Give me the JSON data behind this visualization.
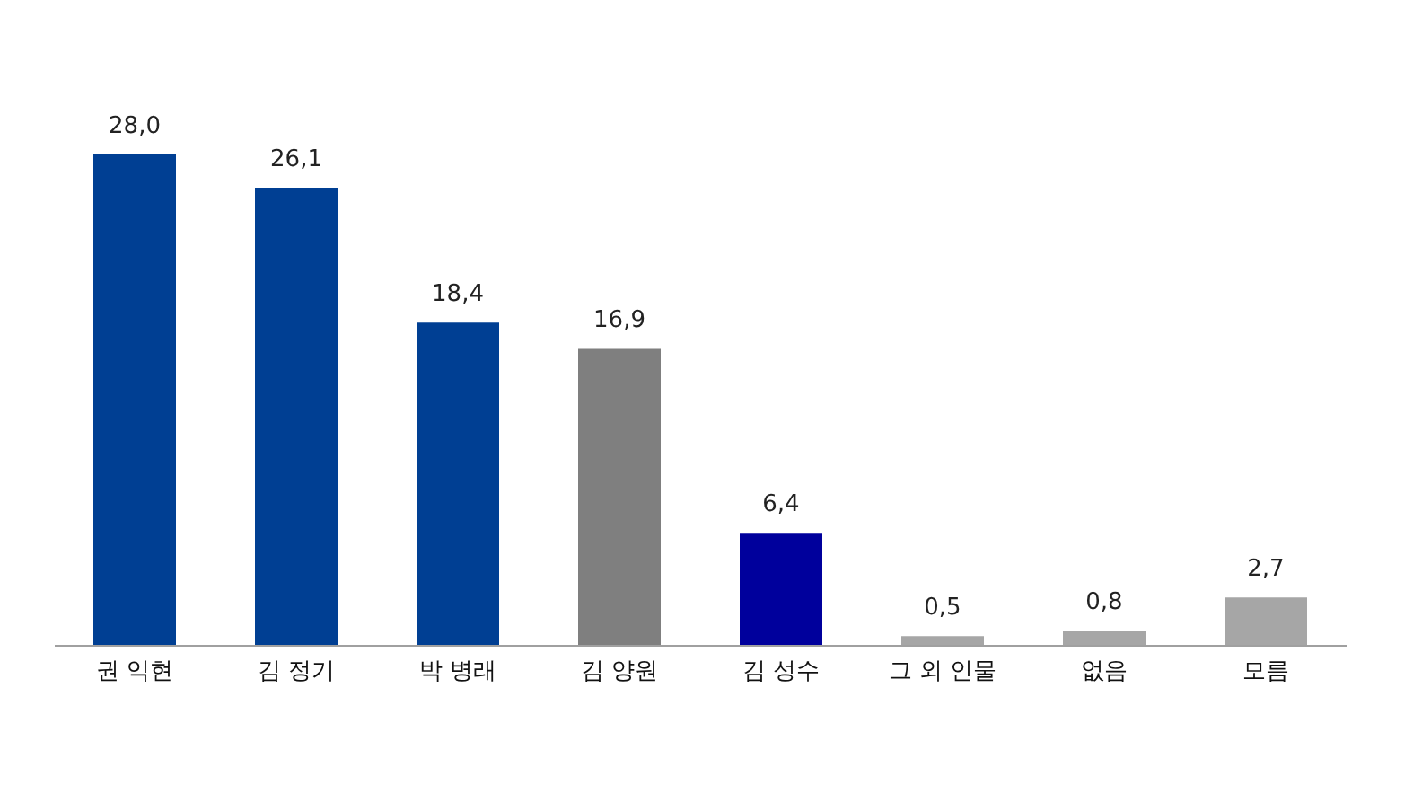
{
  "chart_data": {
    "type": "bar",
    "categories": [
      "권 익현",
      "김 정기",
      "박 병래",
      "김 양원",
      "김 성수",
      "그 외 인물",
      "없음",
      "모름"
    ],
    "values": [
      28.0,
      26.1,
      18.4,
      16.9,
      6.4,
      0.5,
      0.8,
      2.7
    ],
    "value_labels": [
      "28,0",
      "26,1",
      "18,4",
      "16,9",
      "6,4",
      "0,5",
      "0,8",
      "2,7"
    ],
    "colors": [
      "#003f93",
      "#003f93",
      "#003f93",
      "#7f7f7f",
      "#00009c",
      "#a6a6a6",
      "#a6a6a6",
      "#a6a6a6"
    ],
    "grid": false
  }
}
